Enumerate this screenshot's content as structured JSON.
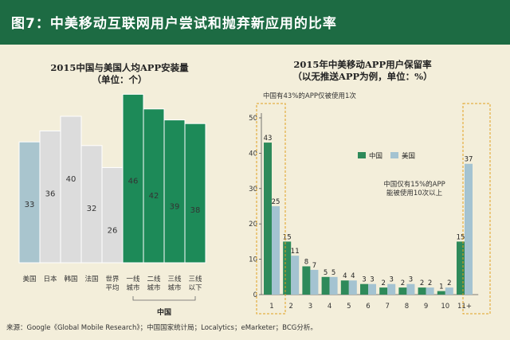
{
  "header": {
    "title": "图7：中美移动互联网用户尝试和抛弃新应用的比率"
  },
  "colors": {
    "header": "#1d6b43",
    "background": "#f3eeda",
    "us_bar": "#a9c5ce",
    "gray_bar": "#dcdcdc",
    "china_bar": "#1d8a58",
    "china_green": "#2e8a5a",
    "us_blue": "#a4c3d1",
    "dashed": "#e0a020"
  },
  "source": "来源：Google《Global Mobile Research》；中国国家统计局；Localytics；eMarketer；BCG分析。",
  "chart_data": [
    {
      "type": "bar",
      "title": "2015中国与美国人均APP安装量",
      "subtitle": "（单位：个）",
      "categories": [
        "美国",
        "日本",
        "韩国",
        "法国",
        "世界平均",
        "一线城市",
        "二线城市",
        "三线城市",
        "三线以下"
      ],
      "category_lines": [
        [
          "美国"
        ],
        [
          "日本"
        ],
        [
          "韩国"
        ],
        [
          "法国"
        ],
        [
          "世界",
          "平均"
        ],
        [
          "一线",
          "城市"
        ],
        [
          "二线",
          "城市"
        ],
        [
          "三线",
          "城市"
        ],
        [
          "三线",
          "以下"
        ]
      ],
      "values": [
        33,
        36,
        40,
        32,
        26,
        46,
        42,
        39,
        38
      ],
      "bar_groups": [
        "us",
        "other",
        "other",
        "other",
        "other",
        "china",
        "china",
        "china",
        "china"
      ],
      "group_label": "中国"
    },
    {
      "type": "bar",
      "title": "2015年中美移动APP用户保留率",
      "subtitle": "（以无推送APP为例，单位：%）",
      "categories": [
        "1",
        "2",
        "3",
        "4",
        "5",
        "6",
        "7",
        "8",
        "9",
        "10",
        "11+"
      ],
      "series": [
        {
          "name": "中国",
          "values": [
            43,
            15,
            8,
            5,
            4,
            3,
            2,
            2,
            2,
            1,
            15
          ]
        },
        {
          "name": "美国",
          "values": [
            25,
            11,
            7,
            5,
            4,
            3,
            3,
            3,
            2,
            2,
            37
          ]
        }
      ],
      "ylim": [
        0,
        50
      ],
      "yticks": [
        0,
        10,
        20,
        30,
        40,
        50
      ],
      "legend": "center-right",
      "annotations": [
        "中国有43%的APP仅被使用1次",
        "中国仅有15%的APP能被使用10次以上"
      ],
      "annotation_lines": [
        [
          "中国有43%的APP仅被使用1次"
        ],
        [
          "中国仅有15%的APP",
          "能被使用10次以上"
        ]
      ]
    }
  ]
}
